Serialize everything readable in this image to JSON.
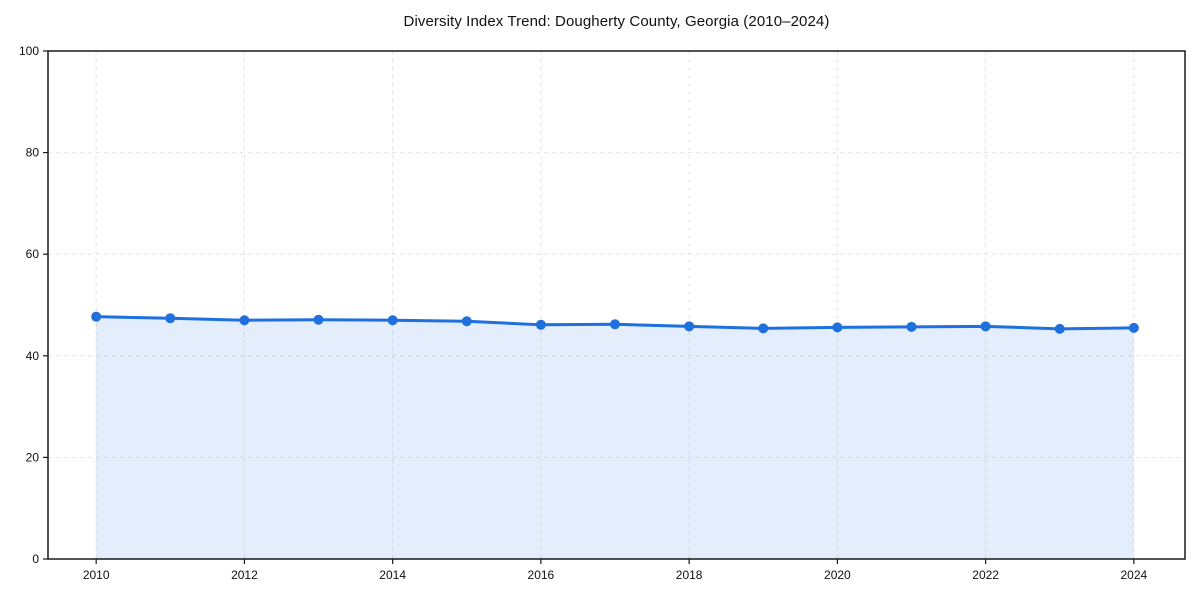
{
  "figure": {
    "background": "#ffffff"
  },
  "chart_data": {
    "type": "line",
    "title": "Diversity Index Trend: Dougherty County, Georgia (2010–2024)",
    "x": [
      2010,
      2011,
      2012,
      2013,
      2014,
      2015,
      2016,
      2017,
      2018,
      2019,
      2020,
      2021,
      2022,
      2023,
      2024
    ],
    "series": [
      {
        "name": "Diversity Index",
        "values": [
          47.7,
          47.4,
          47.0,
          47.1,
          47.0,
          46.8,
          46.1,
          46.2,
          45.8,
          45.4,
          45.6,
          45.7,
          45.8,
          45.3,
          45.5
        ],
        "color": "#1e6fe0",
        "marker": "circle",
        "marker_radius": 5,
        "line_width": 3,
        "fill_to_zero": true,
        "fill_color": "#1e6fe0",
        "fill_opacity": 0.12
      }
    ],
    "xlabel": "",
    "ylabel": "",
    "xlim": [
      2009.35,
      2024.69
    ],
    "ylim": [
      0,
      100
    ],
    "xticks": [
      2010,
      2012,
      2014,
      2016,
      2018,
      2020,
      2022,
      2024
    ],
    "yticks": [
      0,
      20,
      40,
      60,
      80,
      100
    ],
    "grid": true,
    "grid_color": "#e4e4e4",
    "grid_dash": "4 4",
    "legend": "none",
    "axes_box": true,
    "spine_color": "#1a1a1a",
    "tick_color": "#1a1a1a",
    "tick_label_color": "#111111",
    "tick_font_size": 12
  }
}
